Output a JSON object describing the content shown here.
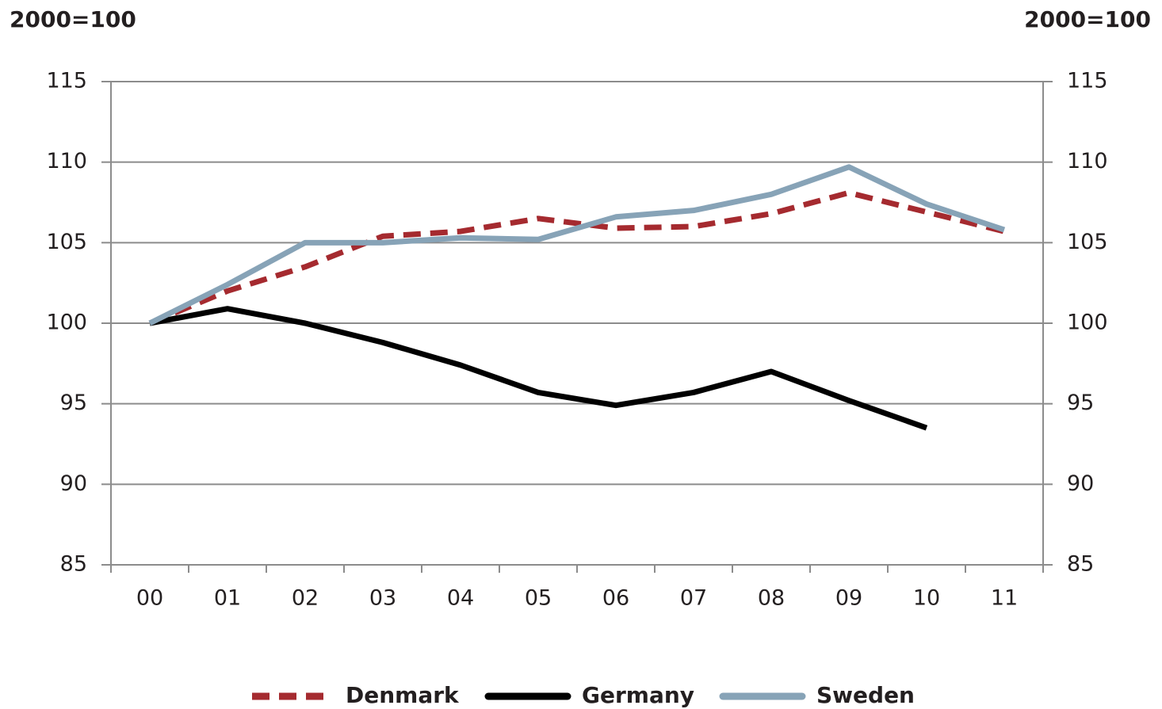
{
  "chart_data": {
    "type": "line",
    "y_label": "2000=100",
    "y2_label": "2000=100",
    "categories": [
      "00",
      "01",
      "02",
      "03",
      "04",
      "05",
      "06",
      "07",
      "08",
      "09",
      "10",
      "11"
    ],
    "series": [
      {
        "name": "Denmark",
        "color": "#a52a2f",
        "dash": true,
        "values": [
          100,
          102,
          103.5,
          105.4,
          105.7,
          106.5,
          105.9,
          106,
          106.8,
          108.1,
          106.9,
          105.7
        ]
      },
      {
        "name": "Germany",
        "color": "#000000",
        "values": [
          100,
          100.9,
          100,
          98.8,
          97.4,
          95.7,
          94.9,
          95.7,
          97,
          95.2,
          93.5,
          null
        ]
      },
      {
        "name": "Sweden",
        "color": "#87a3b7",
        "values": [
          100,
          102.4,
          105,
          105,
          105.3,
          105.2,
          106.6,
          107,
          108,
          109.7,
          107.4,
          105.8
        ]
      }
    ],
    "ylim": [
      85,
      115
    ],
    "yticks": [
      85,
      90,
      95,
      100,
      105,
      110,
      115
    ],
    "y2lim": [
      85,
      115
    ],
    "y2ticks": [
      85,
      90,
      95,
      100,
      105,
      110,
      115
    ],
    "grid": true,
    "legend": "bottom"
  }
}
